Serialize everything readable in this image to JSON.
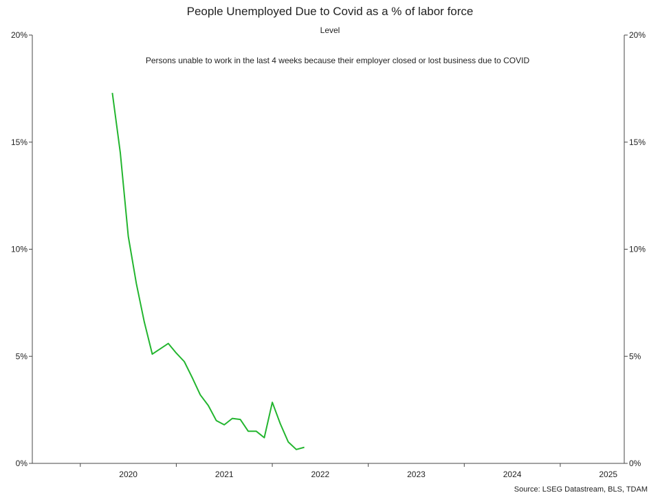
{
  "chart_data": {
    "type": "line",
    "title": "People Unemployed Due to Covid as a % of labor force",
    "subtitle": "Level",
    "annotation": "Persons unable to work in the last 4 weeks because their employer closed or lost business due to COVID",
    "source": "Source: LSEG Datastream, BLS, TDAM",
    "y_ticks": [
      "0%",
      "5%",
      "10%",
      "15%",
      "20%"
    ],
    "y_tick_values": [
      0,
      5,
      10,
      15,
      20
    ],
    "ylim": [
      0,
      20
    ],
    "x_ticks": [
      "2020",
      "2021",
      "2022",
      "2023",
      "2024",
      "2025"
    ],
    "x_tick_dates": [
      "2020-01",
      "2021-01",
      "2022-01",
      "2023-01",
      "2024-01",
      "2025-01"
    ],
    "xlim": [
      "2019-07",
      "2025-09"
    ],
    "grid": false,
    "series": [
      {
        "color": "#22b52e",
        "x": [
          "2020-05",
          "2020-06",
          "2020-07",
          "2020-08",
          "2020-09",
          "2020-10",
          "2020-11",
          "2020-12",
          "2021-01",
          "2021-02",
          "2021-03",
          "2021-04",
          "2021-05",
          "2021-06",
          "2021-07",
          "2021-08",
          "2021-09",
          "2021-10",
          "2021-11",
          "2021-12",
          "2022-01",
          "2022-02",
          "2022-03",
          "2022-04",
          "2022-05"
        ],
        "values": [
          17.3,
          14.5,
          10.6,
          8.4,
          6.6,
          5.1,
          5.35,
          5.6,
          5.15,
          4.75,
          4.0,
          3.2,
          2.7,
          2.0,
          1.8,
          2.1,
          2.05,
          1.5,
          1.5,
          1.2,
          2.85,
          1.85,
          1.0,
          0.65,
          0.75
        ]
      }
    ]
  }
}
